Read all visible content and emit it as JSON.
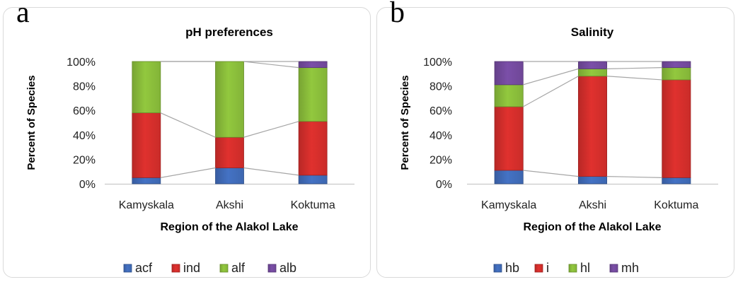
{
  "chart_data": [
    {
      "type": "bar",
      "stacked": true,
      "panel_label": "a",
      "title": "pH preferences",
      "xlabel": "Region of the Alakol Lake",
      "ylabel": "Percent of Species",
      "categories": [
        "Kamyskala",
        "Akshi",
        "Koktuma"
      ],
      "ylim": [
        0,
        100
      ],
      "yticks": [
        "0%",
        "20%",
        "40%",
        "60%",
        "80%",
        "100%"
      ],
      "legend_position": "bottom",
      "series_lines": true,
      "series": [
        {
          "name": "acf",
          "color": "#4472c4",
          "values": [
            5,
            13,
            7
          ]
        },
        {
          "name": "ind",
          "color": "#e0312e",
          "values": [
            53,
            25,
            44
          ]
        },
        {
          "name": "alf",
          "color": "#92c83e",
          "values": [
            42,
            62,
            44
          ]
        },
        {
          "name": "alb",
          "color": "#7b4fa8",
          "values": [
            0,
            0,
            5
          ]
        }
      ]
    },
    {
      "type": "bar",
      "stacked": true,
      "panel_label": "b",
      "title": "Salinity",
      "xlabel": "Region of the Alakol Lake",
      "ylabel": "Percent of Species",
      "categories": [
        "Kamyskala",
        "Akshi",
        "Koktuma"
      ],
      "ylim": [
        0,
        100
      ],
      "yticks": [
        "0%",
        "20%",
        "40%",
        "60%",
        "80%",
        "100%"
      ],
      "legend_position": "bottom",
      "series_lines": true,
      "series": [
        {
          "name": "hb",
          "color": "#4472c4",
          "values": [
            11,
            6,
            5
          ]
        },
        {
          "name": "i",
          "color": "#e0312e",
          "values": [
            52,
            82,
            80
          ]
        },
        {
          "name": "hl",
          "color": "#92c83e",
          "values": [
            18,
            6,
            10
          ]
        },
        {
          "name": "mh",
          "color": "#7b4fa8",
          "values": [
            19,
            6,
            5
          ]
        }
      ]
    }
  ]
}
